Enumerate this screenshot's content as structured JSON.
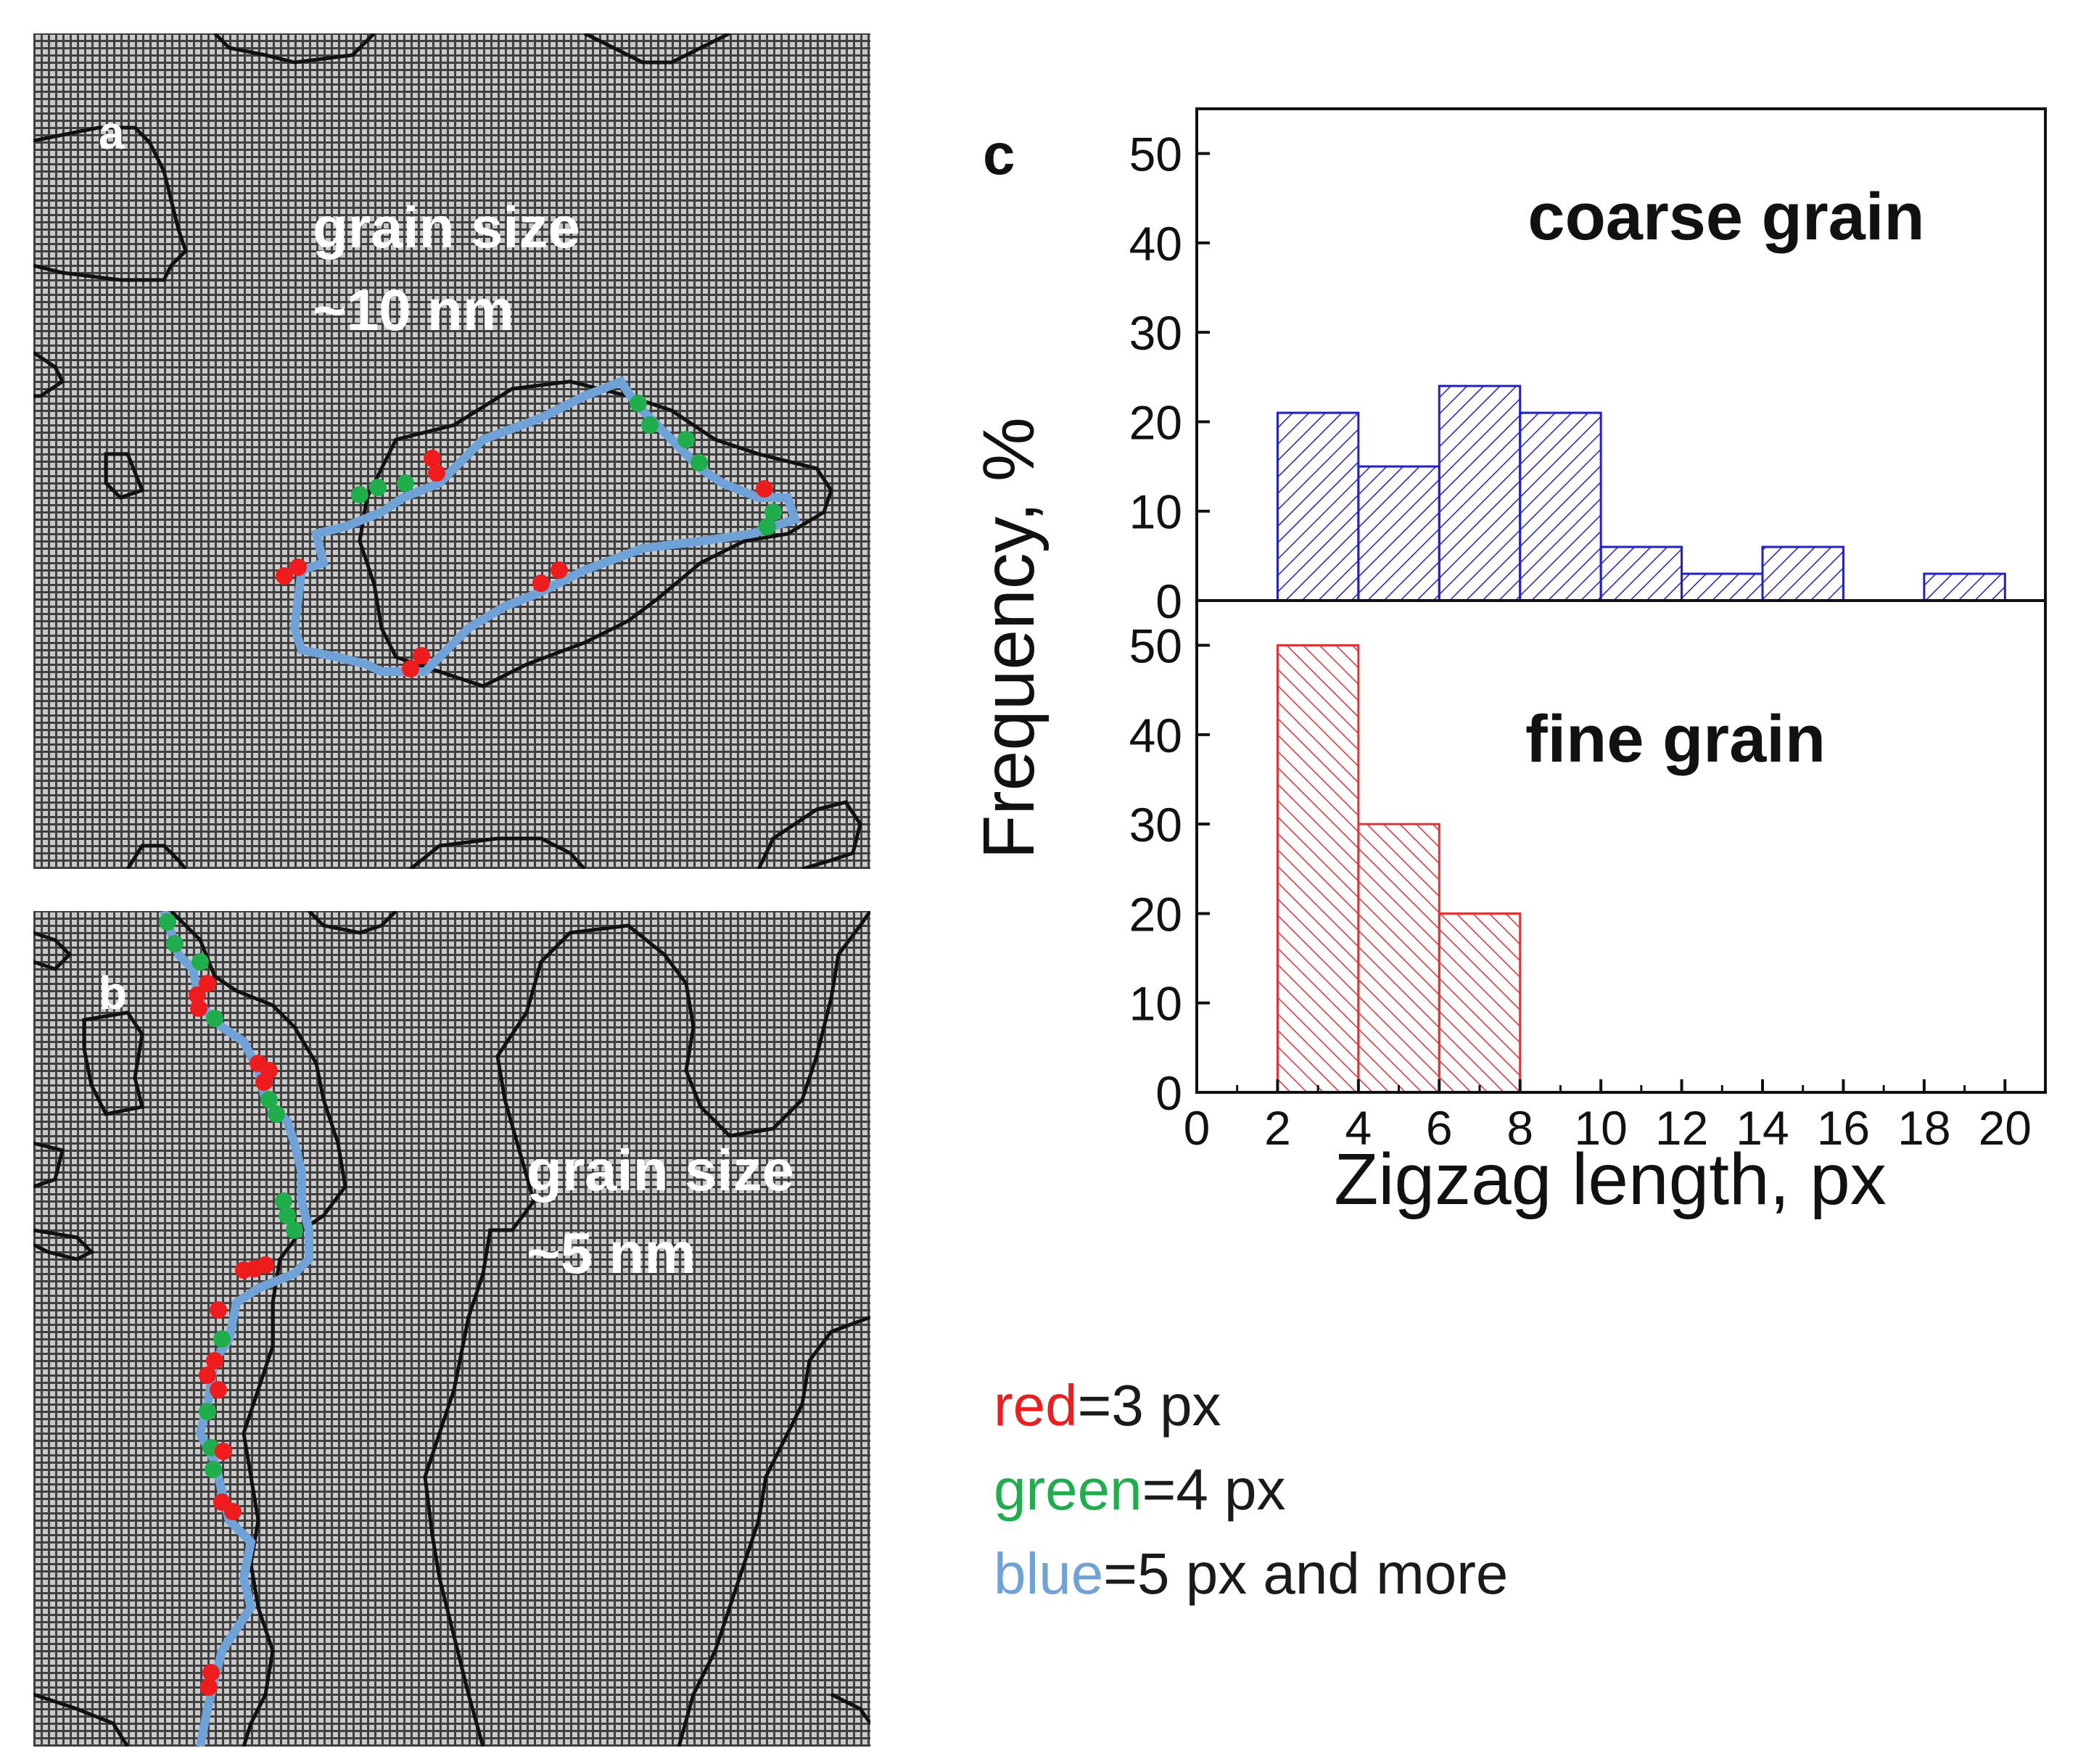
{
  "panels": {
    "a": {
      "letter": "a",
      "line1": "grain size",
      "line2": "~10 nm"
    },
    "b": {
      "letter": "b",
      "line1": "grain size",
      "line2": "~5 nm"
    }
  },
  "colors": {
    "red": "#ee1c1c",
    "green": "#1fae4b",
    "blue": "#6fa3d8",
    "coarse": "#1f1fd6",
    "fine": "#e83030",
    "boundary": "#111111"
  },
  "legend": [
    {
      "word": "red",
      "rest": "=3 px",
      "color": "#ee1c1c"
    },
    {
      "word": "green",
      "rest": "=4 px",
      "color": "#1fae4b"
    },
    {
      "word": "blue",
      "rest": "=5 px and more",
      "color": "#6fa3d8"
    }
  ],
  "chart_data": {
    "type": "bar",
    "panel_label": "c",
    "xlabel": "Zigzag length, px",
    "ylabel": "Frequency, %",
    "xlim": [
      0,
      21
    ],
    "ylim": [
      0,
      55
    ],
    "xticks": [
      "0",
      "2",
      "4",
      "6",
      "8",
      "10",
      "12",
      "14",
      "16",
      "18",
      "20"
    ],
    "yticks": [
      "0",
      "10",
      "20",
      "30",
      "40",
      "50"
    ],
    "series": [
      {
        "name": "coarse grain",
        "bins": [
          [
            2,
            4
          ],
          [
            4,
            6
          ],
          [
            6,
            8
          ],
          [
            8,
            10
          ],
          [
            10,
            12
          ],
          [
            12,
            14
          ],
          [
            14,
            16
          ],
          [
            18,
            20
          ]
        ],
        "values": [
          21,
          15,
          24,
          21,
          6,
          3,
          6,
          3
        ]
      },
      {
        "name": "fine grain",
        "bins": [
          [
            2,
            4
          ],
          [
            4,
            6
          ],
          [
            6,
            8
          ]
        ],
        "values": [
          50,
          30,
          20
        ]
      }
    ]
  }
}
